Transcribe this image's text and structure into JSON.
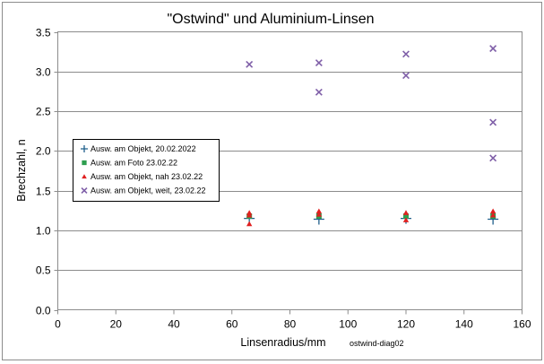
{
  "chart_data": {
    "type": "scatter",
    "title": "\"Ostwind\" und Aluminium-Linsen",
    "xlabel": "Linsenradius/mm",
    "ylabel": "Brechzahl, n",
    "note": "ostwind-diag02",
    "xlim": [
      0,
      160
    ],
    "ylim": [
      0.0,
      3.5
    ],
    "x_ticks": [
      0,
      20,
      40,
      60,
      80,
      100,
      120,
      140,
      160
    ],
    "x_tick_labels": [
      "0",
      "20",
      "40",
      "60",
      "80",
      "100",
      "120",
      "140",
      "160"
    ],
    "y_ticks": [
      0.0,
      0.5,
      1.0,
      1.5,
      2.0,
      2.5,
      3.0,
      3.5
    ],
    "y_tick_labels": [
      "0.0",
      "0.5",
      "1.0",
      "1.5",
      "2.0",
      "2.5",
      "3.0",
      "3.5"
    ],
    "grid": "horizontal",
    "legend_position": "left-middle",
    "series": [
      {
        "name": "Ausw. am Objekt, 20.02.2022",
        "marker": "plus",
        "color": "#1f5f8b",
        "points": [
          [
            66,
            1.15
          ],
          [
            90,
            1.14
          ],
          [
            120,
            1.15
          ],
          [
            150,
            1.14
          ]
        ]
      },
      {
        "name": "Ausw. am Foto 23.02.22",
        "marker": "square",
        "color": "#2e9e4f",
        "points": [
          [
            66,
            1.18
          ],
          [
            90,
            1.18
          ],
          [
            120,
            1.18
          ],
          [
            150,
            1.18
          ]
        ]
      },
      {
        "name": "Ausw. am Objekt, nah 23.02.22",
        "marker": "triangle",
        "color": "#e02020",
        "points": [
          [
            66,
            1.22
          ],
          [
            66,
            1.19
          ],
          [
            66,
            1.08
          ],
          [
            90,
            1.24
          ],
          [
            90,
            1.2
          ],
          [
            120,
            1.22
          ],
          [
            120,
            1.13
          ],
          [
            150,
            1.24
          ],
          [
            150,
            1.19
          ]
        ]
      },
      {
        "name": "Ausw. am Objekt, weit, 23.02.22",
        "marker": "x",
        "color": "#7f5fa8",
        "points": [
          [
            66,
            3.09
          ],
          [
            90,
            3.11
          ],
          [
            90,
            2.74
          ],
          [
            120,
            3.22
          ],
          [
            120,
            2.95
          ],
          [
            150,
            3.29
          ],
          [
            150,
            2.36
          ],
          [
            150,
            1.91
          ]
        ]
      }
    ]
  }
}
